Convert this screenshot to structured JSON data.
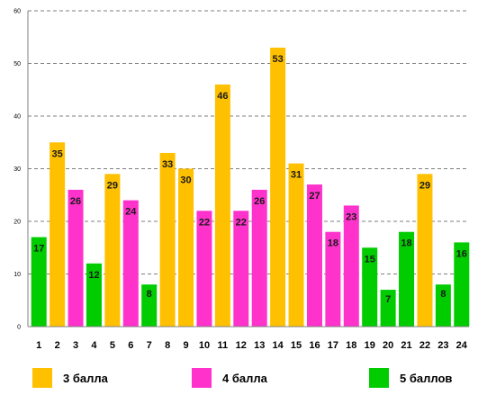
{
  "chart_data": {
    "type": "bar",
    "categories": [
      "1",
      "2",
      "3",
      "4",
      "5",
      "6",
      "7",
      "8",
      "9",
      "10",
      "11",
      "12",
      "13",
      "14",
      "15",
      "16",
      "17",
      "18",
      "19",
      "20",
      "21",
      "22",
      "23",
      "24"
    ],
    "values": [
      17,
      35,
      26,
      12,
      29,
      24,
      8,
      33,
      30,
      22,
      46,
      22,
      26,
      53,
      31,
      27,
      18,
      23,
      15,
      7,
      18,
      29,
      8,
      16
    ],
    "groups": [
      "5",
      "3",
      "4",
      "5",
      "3",
      "4",
      "5",
      "3",
      "3",
      "4",
      "3",
      "4",
      "4",
      "3",
      "3",
      "4",
      "4",
      "4",
      "5",
      "5",
      "5",
      "3",
      "5",
      "5"
    ],
    "ylim": [
      0,
      60
    ],
    "yticks": [
      0,
      10,
      20,
      30,
      40,
      50,
      60
    ],
    "grid": true,
    "legend_position": "bottom",
    "legend": [
      {
        "key": "3",
        "label": "3 балла",
        "color": "#FFC000"
      },
      {
        "key": "4",
        "label": "4 балла",
        "color": "#FF33CC"
      },
      {
        "key": "5",
        "label": "5 баллов",
        "color": "#00CC00"
      }
    ]
  }
}
